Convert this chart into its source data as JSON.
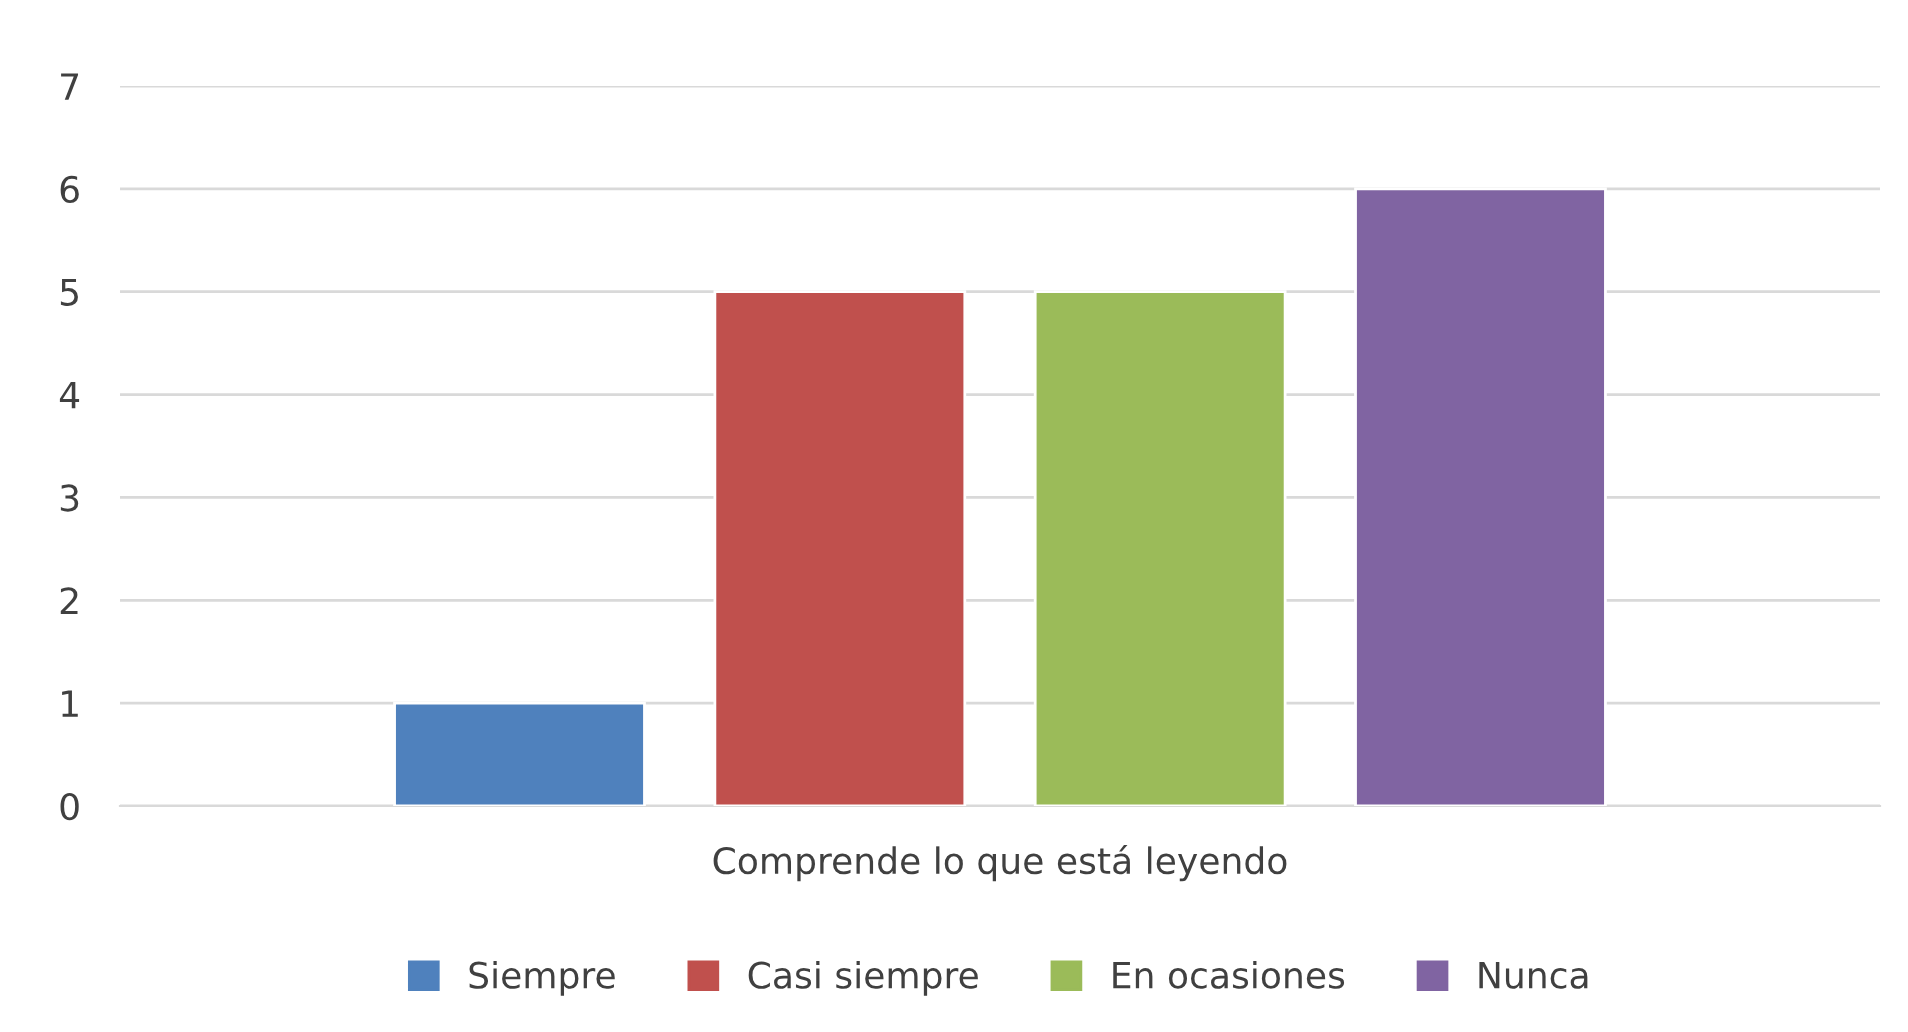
{
  "chart_data": {
    "type": "bar",
    "categories": [
      "Comprende lo que está leyendo"
    ],
    "series": [
      {
        "name": "Siempre",
        "color": "#4f81bd",
        "values": [
          1
        ]
      },
      {
        "name": "Casi siempre",
        "color": "#c0504d",
        "values": [
          5
        ]
      },
      {
        "name": "En ocasiones",
        "color": "#9bbb59",
        "values": [
          5
        ]
      },
      {
        "name": "Nunca",
        "color": "#8064a2",
        "values": [
          6
        ]
      }
    ],
    "ylim": [
      0,
      7
    ],
    "yticks": [
      0,
      1,
      2,
      3,
      4,
      5,
      6,
      7
    ],
    "grid": "y",
    "legend": "bottom"
  }
}
